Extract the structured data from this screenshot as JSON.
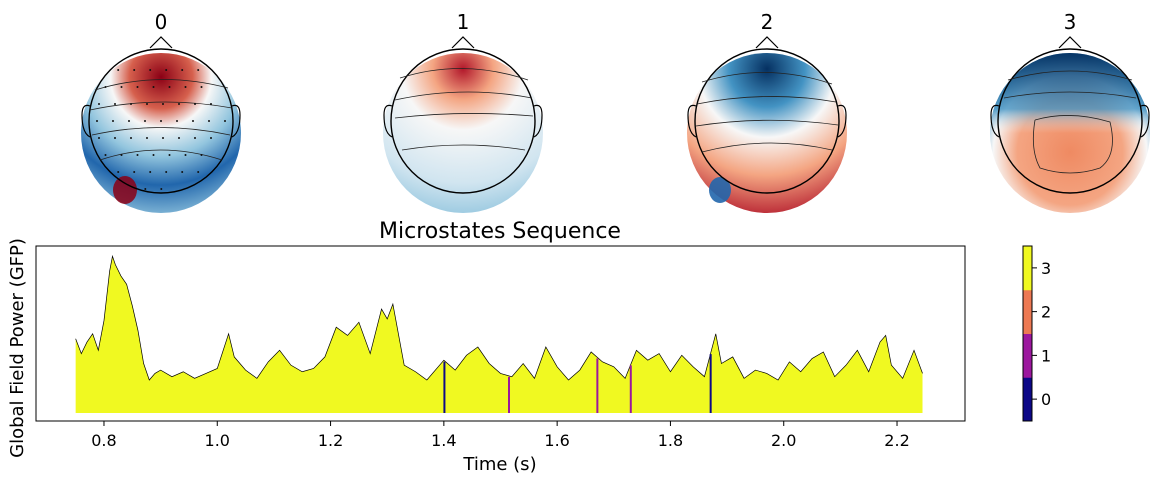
{
  "topomaps": {
    "titles": [
      "0",
      "1",
      "2",
      "3"
    ],
    "colors": {
      "red": "#8b0015",
      "light_red": "#f4a582",
      "white": "#f7f7f7",
      "light_blue": "#92c5de",
      "blue": "#053061"
    }
  },
  "chart_data": {
    "type": "area",
    "title": "Microstates Sequence",
    "xlabel": "Time (s)",
    "ylabel": "Global Field Power (GFP)",
    "xlim": [
      0.68,
      2.32
    ],
    "ylim": [
      0,
      1.0
    ],
    "xticks": [
      0.8,
      1.0,
      1.2,
      1.4,
      1.6,
      1.8,
      2.0,
      2.2
    ],
    "xtick_labels": [
      "0.8",
      "1.0",
      "1.2",
      "1.4",
      "1.6",
      "1.8",
      "2.0",
      "2.2"
    ],
    "gfp_x": [
      0.75,
      0.76,
      0.77,
      0.78,
      0.79,
      0.8,
      0.81,
      0.815,
      0.82,
      0.83,
      0.84,
      0.85,
      0.86,
      0.87,
      0.88,
      0.89,
      0.9,
      0.92,
      0.94,
      0.96,
      0.98,
      1.0,
      1.02,
      1.03,
      1.05,
      1.07,
      1.09,
      1.11,
      1.13,
      1.15,
      1.17,
      1.19,
      1.21,
      1.23,
      1.25,
      1.27,
      1.29,
      1.3,
      1.31,
      1.33,
      1.35,
      1.37,
      1.4,
      1.42,
      1.44,
      1.46,
      1.48,
      1.5,
      1.52,
      1.54,
      1.56,
      1.58,
      1.6,
      1.62,
      1.64,
      1.66,
      1.68,
      1.7,
      1.72,
      1.74,
      1.76,
      1.78,
      1.8,
      1.82,
      1.84,
      1.86,
      1.88,
      1.89,
      1.91,
      1.93,
      1.95,
      1.97,
      1.99,
      2.01,
      2.03,
      2.05,
      2.07,
      2.09,
      2.11,
      2.13,
      2.15,
      2.17,
      2.18,
      2.19,
      2.21,
      2.23,
      2.245
    ],
    "gfp_y": [
      0.45,
      0.36,
      0.43,
      0.48,
      0.38,
      0.56,
      0.86,
      0.95,
      0.9,
      0.83,
      0.78,
      0.65,
      0.5,
      0.3,
      0.2,
      0.24,
      0.26,
      0.22,
      0.25,
      0.21,
      0.24,
      0.27,
      0.48,
      0.34,
      0.26,
      0.21,
      0.31,
      0.38,
      0.29,
      0.25,
      0.27,
      0.34,
      0.52,
      0.47,
      0.55,
      0.36,
      0.63,
      0.57,
      0.66,
      0.29,
      0.25,
      0.2,
      0.32,
      0.26,
      0.35,
      0.4,
      0.3,
      0.24,
      0.22,
      0.3,
      0.21,
      0.4,
      0.28,
      0.2,
      0.26,
      0.37,
      0.31,
      0.28,
      0.21,
      0.38,
      0.32,
      0.36,
      0.25,
      0.35,
      0.28,
      0.22,
      0.48,
      0.3,
      0.34,
      0.21,
      0.26,
      0.24,
      0.2,
      0.31,
      0.25,
      0.33,
      0.37,
      0.22,
      0.29,
      0.38,
      0.25,
      0.43,
      0.47,
      0.29,
      0.21,
      0.38,
      0.24
    ],
    "fill_color": "#f0f921",
    "state_changes": [
      {
        "x": 1.401,
        "state": 0
      },
      {
        "x": 1.515,
        "state": 1
      },
      {
        "x": 1.671,
        "state": 1
      },
      {
        "x": 1.73,
        "state": 1
      },
      {
        "x": 1.871,
        "state": 0
      }
    ],
    "colorbar": {
      "ticks": [
        "0",
        "1",
        "2",
        "3"
      ],
      "colors": [
        "#0d0887",
        "#9c179e",
        "#ed7953",
        "#f0f921"
      ]
    },
    "grid": false
  }
}
